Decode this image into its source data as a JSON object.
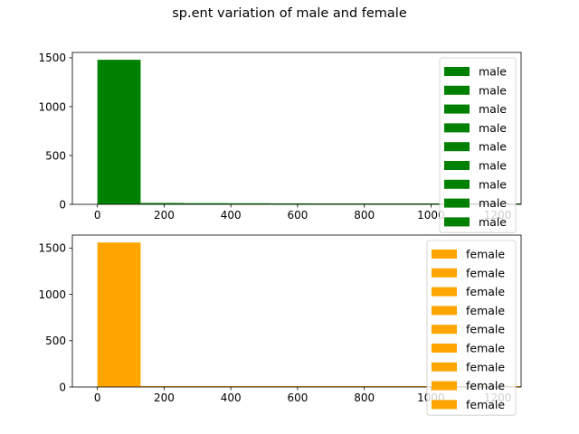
{
  "figure": {
    "title": "sp.ent variation of male and female"
  },
  "chart_data": [
    {
      "type": "bar",
      "title": "",
      "xlabel": "",
      "ylabel": "",
      "xlim": [
        -75,
        1270
      ],
      "ylim": [
        0,
        1555
      ],
      "bin_edges": [
        0,
        129.6,
        259.2,
        388.8,
        518.4,
        648,
        777.6,
        907.2,
        1036.8,
        1166.4,
        1296
      ],
      "values": [
        1480,
        14,
        12,
        11,
        10,
        9,
        9,
        8,
        7,
        6
      ],
      "xticks": [
        0,
        200,
        400,
        600,
        800,
        1000,
        1200
      ],
      "xtick_labels": [
        "0",
        "200",
        "400",
        "600",
        "800",
        "1000",
        "1200"
      ],
      "yticks": [
        0,
        500,
        1000,
        1500
      ],
      "ytick_labels": [
        "0",
        "500",
        "1000",
        "1500"
      ],
      "color": "#008000",
      "grid": false,
      "legend": {
        "placement": "upper right",
        "entries": [
          "male",
          "male",
          "male",
          "male",
          "male",
          "male",
          "male",
          "male",
          "male"
        ]
      }
    },
    {
      "type": "bar",
      "title": "",
      "xlabel": "",
      "ylabel": "",
      "xlim": [
        -75,
        1270
      ],
      "ylim": [
        0,
        1640
      ],
      "bin_edges": [
        0,
        129.6,
        259.2,
        388.8,
        518.4,
        648,
        777.6,
        907.2,
        1036.8,
        1166.4,
        1296
      ],
      "values": [
        1560,
        8,
        3,
        3,
        3,
        9,
        3,
        2,
        2,
        2
      ],
      "xticks": [
        0,
        200,
        400,
        600,
        800,
        1000,
        1200
      ],
      "xtick_labels": [
        "0",
        "200",
        "400",
        "600",
        "800",
        "1000",
        "1200"
      ],
      "yticks": [
        0,
        500,
        1000,
        1500
      ],
      "ytick_labels": [
        "0",
        "500",
        "1000",
        "1500"
      ],
      "color": "#ffa500",
      "grid": false,
      "legend": {
        "placement": "upper right",
        "entries": [
          "female",
          "female",
          "female",
          "female",
          "female",
          "female",
          "female",
          "female",
          "female"
        ]
      }
    }
  ]
}
